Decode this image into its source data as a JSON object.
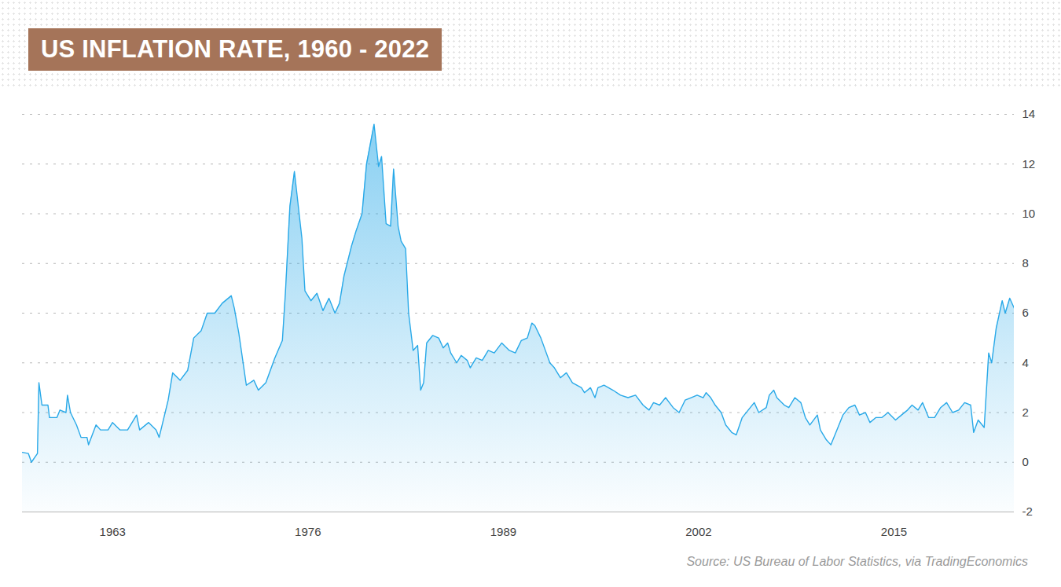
{
  "chart_data": {
    "type": "area",
    "title": "US INFLATION RATE, 1960 - 2022",
    "caption": "Source: US Bureau of Labor Statistics, via TradingEconomics",
    "color": "#29a9e8",
    "grid": true,
    "xlim": [
      1957,
      2023
    ],
    "xticks": [
      1963,
      1976,
      1989,
      2002,
      2015
    ],
    "ylim": [
      -2,
      14
    ],
    "yticks": [
      -2,
      0,
      2,
      4,
      6,
      8,
      10,
      12,
      14
    ],
    "x": [
      1957.0,
      1957.4,
      1957.6,
      1958.0,
      1958.1,
      1958.3,
      1958.7,
      1958.8,
      1959.3,
      1959.5,
      1959.9,
      1960.0,
      1960.2,
      1960.6,
      1960.9,
      1961.3,
      1961.4,
      1961.9,
      1962.2,
      1962.7,
      1963.0,
      1963.5,
      1964.0,
      1964.6,
      1964.8,
      1965.4,
      1965.9,
      1966.1,
      1966.7,
      1967.0,
      1967.5,
      1968.0,
      1968.4,
      1968.9,
      1969.3,
      1969.8,
      1970.3,
      1970.9,
      1971.1,
      1971.4,
      1971.9,
      1972.4,
      1972.7,
      1973.2,
      1973.8,
      1974.3,
      1974.5,
      1974.8,
      1975.1,
      1975.6,
      1975.8,
      1976.2,
      1976.6,
      1977.0,
      1977.4,
      1977.8,
      1978.1,
      1978.4,
      1978.9,
      1979.2,
      1979.6,
      1979.9,
      1980.4,
      1980.7,
      1980.9,
      1981.2,
      1981.5,
      1981.7,
      1982.0,
      1982.2,
      1982.5,
      1982.7,
      1983.0,
      1983.3,
      1983.5,
      1983.7,
      1983.9,
      1984.3,
      1984.7,
      1985.0,
      1985.3,
      1985.5,
      1985.9,
      1986.2,
      1986.6,
      1986.8,
      1987.2,
      1987.6,
      1988.0,
      1988.4,
      1988.9,
      1989.4,
      1989.8,
      1990.2,
      1990.6,
      1990.9,
      1991.1,
      1991.5,
      1992.1,
      1992.4,
      1992.8,
      1993.2,
      1993.6,
      1994.2,
      1994.4,
      1994.8,
      1995.1,
      1995.3,
      1995.7,
      1996.3,
      1996.8,
      1997.3,
      1997.8,
      1998.3,
      1998.7,
      1999.0,
      1999.4,
      1999.8,
      2000.3,
      2000.7,
      2001.1,
      2001.5,
      2001.9,
      2002.3,
      2002.5,
      2002.8,
      2003.1,
      2003.5,
      2003.8,
      2004.2,
      2004.5,
      2004.9,
      2005.3,
      2005.7,
      2006.0,
      2006.5,
      2006.7,
      2007.0,
      2007.2,
      2007.7,
      2008.0,
      2008.4,
      2008.8,
      2009.1,
      2009.4,
      2009.9,
      2010.1,
      2010.5,
      2010.8,
      2011.2,
      2011.6,
      2012.0,
      2012.4,
      2012.7,
      2013.1,
      2013.4,
      2013.8,
      2014.2,
      2014.6,
      2015.1,
      2015.5,
      2015.9,
      2016.2,
      2016.6,
      2016.9,
      2017.3,
      2017.7,
      2018.1,
      2018.5,
      2018.9,
      2019.3,
      2019.7,
      2020.1,
      2020.3,
      2020.6,
      2021.0,
      2021.3,
      2021.5,
      2021.8,
      2022.2,
      2022.4,
      2022.7,
      2023.0
    ],
    "values": [
      0.4,
      0.35,
      0.0,
      0.35,
      3.2,
      2.3,
      2.3,
      1.8,
      1.8,
      2.1,
      2.0,
      2.7,
      2.0,
      1.5,
      1.0,
      1.0,
      0.7,
      1.5,
      1.3,
      1.3,
      1.6,
      1.3,
      1.3,
      1.9,
      1.3,
      1.6,
      1.3,
      1.0,
      2.5,
      3.6,
      3.3,
      3.7,
      5.0,
      5.3,
      6.0,
      6.0,
      6.4,
      6.7,
      6.2,
      5.2,
      3.1,
      3.3,
      2.9,
      3.2,
      4.2,
      4.9,
      6.8,
      10.3,
      11.7,
      9.0,
      6.9,
      6.5,
      6.8,
      6.1,
      6.6,
      6.0,
      6.4,
      7.5,
      8.7,
      9.3,
      10.0,
      12.0,
      13.6,
      11.9,
      12.3,
      9.6,
      9.5,
      11.8,
      9.5,
      8.9,
      8.6,
      6.0,
      4.5,
      4.7,
      2.9,
      3.2,
      4.8,
      5.1,
      5.0,
      4.6,
      4.8,
      4.4,
      4.0,
      4.3,
      4.1,
      3.8,
      4.2,
      4.1,
      4.5,
      4.4,
      4.8,
      4.5,
      4.4,
      4.9,
      5.0,
      5.6,
      5.5,
      5.0,
      4.0,
      3.8,
      3.4,
      3.6,
      3.2,
      3.0,
      2.8,
      3.0,
      2.6,
      3.0,
      3.1,
      2.9,
      2.7,
      2.6,
      2.7,
      2.3,
      2.1,
      2.4,
      2.3,
      2.6,
      2.2,
      2.0,
      2.5,
      2.6,
      2.7,
      2.6,
      2.8,
      2.6,
      2.3,
      2.0,
      1.5,
      1.2,
      1.1,
      1.8,
      2.1,
      2.4,
      2.0,
      2.2,
      2.7,
      2.9,
      2.6,
      2.3,
      2.2,
      2.6,
      2.4,
      1.8,
      1.5,
      1.9,
      1.3,
      0.9,
      0.7,
      1.3,
      1.9,
      2.2,
      2.3,
      1.9,
      2.0,
      1.6,
      1.8,
      1.8,
      2.0,
      1.7,
      1.9,
      2.1,
      2.3,
      2.1,
      2.4,
      1.8,
      1.8,
      2.2,
      2.4,
      2.0,
      2.1,
      2.4,
      2.3,
      1.2,
      1.7,
      1.4,
      4.4,
      4.0,
      5.4,
      6.5,
      6.0,
      6.6,
      6.2
    ]
  }
}
